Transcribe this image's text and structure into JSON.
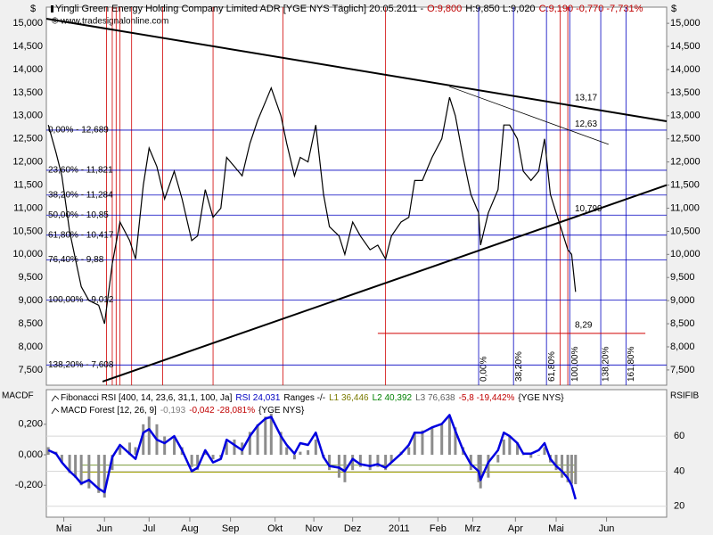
{
  "chart_data": [
    {
      "type": "line",
      "header": [
        {
          "text": "Yingli Green Energy Holding Company Limited ADR [YGE NYS  Täglich] 20.05.2011 -",
          "color": "#000000"
        },
        {
          "text": "O:9,800",
          "color": "#c00000"
        },
        {
          "text": "H:9,850 L:9,020",
          "color": "#000000"
        },
        {
          "text": "C:9,190 -0,770 -7,731%",
          "color": "#c00000"
        }
      ],
      "copyright": "© www.tradesignalonline.com",
      "y_axis_label": "$",
      "xlim": [
        0,
        320
      ],
      "ylim": [
        7170,
        15350
      ],
      "yticks": [
        {
          "value": 7500,
          "label": "7,500"
        },
        {
          "value": 8000,
          "label": "8,000"
        },
        {
          "value": 8500,
          "label": "8,500"
        },
        {
          "value": 9000,
          "label": "9,000"
        },
        {
          "value": 9500,
          "label": "9,500"
        },
        {
          "value": 10000,
          "label": "10,000"
        },
        {
          "value": 10500,
          "label": "10,500"
        },
        {
          "value": 11000,
          "label": "11,000"
        },
        {
          "value": 11500,
          "label": "11,500"
        },
        {
          "value": 12000,
          "label": "12,000"
        },
        {
          "value": 12500,
          "label": "12,500"
        },
        {
          "value": 13000,
          "label": "13,000"
        },
        {
          "value": 13500,
          "label": "13,500"
        },
        {
          "value": 14000,
          "label": "14,000"
        },
        {
          "value": 14500,
          "label": "14,500"
        },
        {
          "value": 15000,
          "label": "15,000"
        }
      ],
      "grid": false,
      "x": [
        1,
        5,
        8,
        12,
        15,
        18,
        22,
        27,
        30,
        34,
        38,
        43,
        46,
        50,
        53,
        57,
        61,
        66,
        70,
        75,
        78,
        82,
        86,
        90,
        93,
        97,
        101,
        105,
        109,
        113,
        116,
        121,
        124,
        128,
        131,
        135,
        139,
        143,
        146,
        151,
        154,
        158,
        162,
        167,
        171,
        175,
        178,
        183,
        187,
        190,
        194,
        199,
        204,
        208,
        211,
        215,
        219,
        223,
        224,
        228,
        233,
        236,
        239,
        243,
        246,
        250,
        254,
        257,
        260,
        263,
        266,
        269,
        271,
        273
      ],
      "series": [
        {
          "color": "#000000",
          "values": [
            12800,
            12200,
            11700,
            10500,
            9900,
            9300,
            9000,
            8900,
            8500,
            9800,
            10700,
            10300,
            9900,
            11500,
            12300,
            11900,
            11200,
            11800,
            11200,
            10300,
            10400,
            11400,
            10800,
            11000,
            12100,
            11900,
            11700,
            12400,
            12900,
            13300,
            13600,
            13000,
            12400,
            11700,
            12100,
            12000,
            12800,
            11300,
            10600,
            10400,
            10000,
            10700,
            10400,
            10100,
            10200,
            9900,
            10400,
            10700,
            10800,
            11600,
            11600,
            12100,
            12500,
            13400,
            13000,
            12100,
            11300,
            10900,
            10200,
            10900,
            11400,
            12800,
            12800,
            12500,
            11800,
            11600,
            11800,
            12500,
            11300,
            10900,
            10500,
            10100,
            10000,
            9190
          ]
        }
      ],
      "fib_levels": {
        "color": "#0000c0",
        "levels": [
          {
            "value": 12689,
            "label": "0,00% - 12,689"
          },
          {
            "value": 11821,
            "label": "23,60% - 11,821"
          },
          {
            "value": 11284,
            "label": "38,20% - 11,284"
          },
          {
            "value": 10850,
            "label": "50,00% - 10,85"
          },
          {
            "value": 10417,
            "label": "61,80% - 10,417"
          },
          {
            "value": 9880,
            "label": "76,40% - 9,88"
          },
          {
            "value": 9012,
            "label": "100,00% - 9,012"
          },
          {
            "value": 7608,
            "label": "138,20% - 7,608"
          }
        ]
      },
      "fib_time": {
        "color": "#0000c0",
        "lines": [
          {
            "value": 223,
            "label": "0,00%"
          },
          {
            "value": 241,
            "label": "38,20%"
          },
          {
            "value": 258,
            "label": "61,80%"
          },
          {
            "value": 270,
            "label": "100,00%"
          },
          {
            "value": 286,
            "label": "138,20%"
          },
          {
            "value": 299,
            "label": "161,80%"
          }
        ]
      },
      "cycle_lines": {
        "color": "#d00000",
        "values": [
          31,
          34,
          36,
          38,
          44,
          60,
          86,
          122,
          175,
          265,
          269
        ]
      },
      "trendlines": [
        {
          "x": [
            0,
            320
          ],
          "y": [
            15100,
            12880
          ],
          "color": "#000000",
          "width": 2,
          "label": "13,17",
          "label_color": "#000000"
        },
        {
          "x": [
            208,
            290
          ],
          "y": [
            13630,
            12380
          ],
          "color": "#000000",
          "width": 0.8,
          "label": "12,63",
          "label_color": "#000000"
        },
        {
          "x": [
            29,
            320
          ],
          "y": [
            7250,
            11500
          ],
          "color": "#000000",
          "width": 2,
          "label": "10,799",
          "label_color": "#000000"
        },
        {
          "x": [
            171,
            309
          ],
          "y": [
            8290,
            8290
          ],
          "color": "#d00000",
          "width": 1,
          "label": "8,29",
          "label_color": "#d00000"
        }
      ]
    },
    {
      "type": "combo",
      "y_axis_label": "MACDF",
      "y2_axis_label": "RSIFIB",
      "xlim": [
        0,
        320
      ],
      "xticks": [
        {
          "value": 9,
          "label": "Mai"
        },
        {
          "value": 30,
          "label": "Jun"
        },
        {
          "value": 53,
          "label": "Jul"
        },
        {
          "value": 74,
          "label": "Aug"
        },
        {
          "value": 95,
          "label": "Sep"
        },
        {
          "value": 118,
          "label": "Okt"
        },
        {
          "value": 138,
          "label": "Nov"
        },
        {
          "value": 158,
          "label": "Dez"
        },
        {
          "value": 182,
          "label": "2011"
        },
        {
          "value": 202,
          "label": "Feb"
        },
        {
          "value": 220,
          "label": "Mrz"
        },
        {
          "value": 242,
          "label": "Apr"
        },
        {
          "value": 263,
          "label": "Mai"
        },
        {
          "value": 289,
          "label": "Jun"
        }
      ],
      "ylim": [
        -0.409,
        0.427
      ],
      "yticks": [
        {
          "value": -0.2,
          "label": "-0,200"
        },
        {
          "value": 0,
          "label": "0,000"
        },
        {
          "value": 0.2,
          "label": "0,200"
        }
      ],
      "y2lim": [
        13.8,
        86.5
      ],
      "y2ticks": [
        20,
        40,
        60
      ],
      "grid": true,
      "reference_lines": [
        {
          "value": 43.5,
          "color": "#7a9a3a",
          "axis": "y2"
        },
        {
          "value": 39.5,
          "color": "#a0a000",
          "axis": "y2"
        }
      ],
      "x": [
        1,
        5,
        8,
        12,
        15,
        18,
        22,
        27,
        30,
        34,
        38,
        43,
        46,
        50,
        53,
        57,
        61,
        66,
        70,
        75,
        78,
        82,
        86,
        90,
        93,
        97,
        101,
        105,
        109,
        113,
        116,
        121,
        124,
        128,
        131,
        135,
        139,
        143,
        146,
        151,
        154,
        158,
        162,
        167,
        171,
        175,
        178,
        183,
        187,
        190,
        194,
        199,
        204,
        208,
        211,
        215,
        219,
        223,
        224,
        228,
        233,
        236,
        239,
        243,
        246,
        250,
        254,
        257,
        260,
        263,
        266,
        269,
        271,
        273
      ],
      "series": [
        {
          "name": "Fibonacci RSI [400, 14, 23,6, 31,1, 100, Ja]",
          "type": "line",
          "axis": "y2",
          "color": "#0000e0",
          "legend_details": [
            {
              "text": "RSI 24,031",
              "color": "#0000c0"
            },
            {
              "text": "Ranges -/-",
              "color": "#000000"
            },
            {
              "text": "L1 36,446",
              "color": "#7a7a00"
            },
            {
              "text": "L2 40,392",
              "color": "#008000"
            },
            {
              "text": "L3 76,638",
              "color": "#606060"
            },
            {
              "text": "-5,8 -19,442%",
              "color": "#c00000"
            },
            {
              "text": "{YGE NYS}",
              "color": "#000000"
            }
          ],
          "values": [
            52,
            50,
            45,
            40,
            37,
            33,
            35,
            30,
            28,
            48,
            55,
            50,
            47,
            62,
            64,
            58,
            56,
            60,
            52,
            40,
            42,
            52,
            45,
            47,
            58,
            55,
            52,
            60,
            66,
            70,
            71,
            60,
            55,
            50,
            56,
            55,
            62,
            48,
            43,
            42,
            40,
            47,
            44,
            43,
            44,
            42,
            45,
            50,
            55,
            62,
            62,
            65,
            67,
            72,
            63,
            52,
            44,
            40,
            35,
            45,
            52,
            62,
            60,
            56,
            50,
            50,
            52,
            56,
            47,
            43,
            40,
            36,
            32,
            24.031
          ]
        },
        {
          "name": "MACD Forest [12, 26, 9]",
          "type": "bar",
          "axis": "y",
          "color": "#8c8c8c",
          "legend_details": [
            {
              "text": "-0,193",
              "color": "#808080"
            },
            {
              "text": "-0,042 -28,081%",
              "color": "#c00000"
            },
            {
              "text": "{YGE NYS}",
              "color": "#000000"
            }
          ],
          "values": [
            0.05,
            0.02,
            -0.05,
            -0.12,
            -0.15,
            -0.2,
            -0.22,
            -0.25,
            -0.28,
            -0.1,
            0.05,
            0.08,
            0.05,
            0.2,
            0.25,
            0.2,
            0.12,
            0.12,
            0.05,
            -0.08,
            -0.1,
            0.02,
            -0.03,
            -0.02,
            0.08,
            0.1,
            0.08,
            0.15,
            0.2,
            0.25,
            0.27,
            0.15,
            0.05,
            -0.03,
            0.02,
            0.03,
            0.1,
            -0.02,
            -0.1,
            -0.15,
            -0.18,
            -0.1,
            -0.08,
            -0.1,
            -0.08,
            -0.1,
            -0.05,
            0.02,
            0.05,
            0.15,
            0.16,
            0.18,
            0.2,
            0.25,
            0.18,
            0.05,
            -0.1,
            -0.18,
            -0.22,
            -0.15,
            -0.05,
            0.1,
            0.12,
            0.08,
            0,
            -0.02,
            0,
            0.05,
            -0.05,
            -0.1,
            -0.15,
            -0.18,
            -0.19,
            -0.193
          ]
        }
      ]
    }
  ]
}
